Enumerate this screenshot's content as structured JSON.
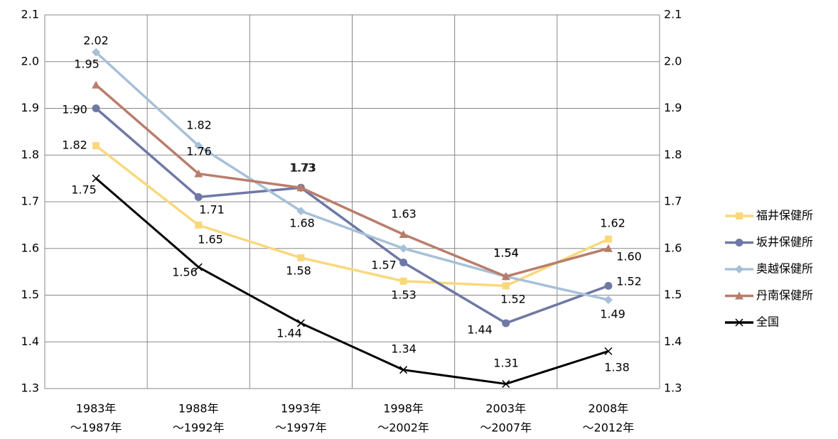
{
  "chart_data": {
    "type": "line",
    "categories": [
      [
        "1983年",
        "～1987年"
      ],
      [
        "1988年",
        "～1992年"
      ],
      [
        "1993年",
        "～1997年"
      ],
      [
        "1998年",
        "～2002年"
      ],
      [
        "2003年",
        "～2007年"
      ],
      [
        "2008年",
        "～2012年"
      ]
    ],
    "ylim": [
      1.3,
      2.1
    ],
    "yticks": [
      1.3,
      1.4,
      1.5,
      1.6,
      1.7,
      1.8,
      1.9,
      {
        "value": 2,
        "label": "2.0"
      },
      2.1
    ],
    "grid": true,
    "legend": "right",
    "series": [
      {
        "name": "福井保健所",
        "color": "#f9d87c",
        "marker": "square",
        "values": [
          1.82,
          1.65,
          1.58,
          1.53,
          1.52,
          1.62
        ],
        "value_labels": [
          "1.82",
          "1.65",
          "1.58",
          "1.53",
          "1.52",
          "1.62"
        ]
      },
      {
        "name": "坂井保健所",
        "color": "#6f78a5",
        "marker": "circle",
        "values": [
          1.9,
          1.71,
          1.73,
          1.57,
          1.44,
          1.52
        ],
        "value_labels": [
          "1.90",
          "1.71",
          "1.73",
          "1.57",
          "1.44",
          "1.52"
        ]
      },
      {
        "name": "奥越保健所",
        "color": "#a7c0d8",
        "marker": "diamond",
        "values": [
          2.02,
          1.82,
          1.68,
          1.6,
          1.54,
          1.49
        ],
        "value_labels": [
          "2.02",
          "1.82",
          "1.68",
          null,
          "1.54",
          "1.49"
        ]
      },
      {
        "name": "丹南保健所",
        "color": "#b97d6c",
        "marker": "triangle",
        "values": [
          1.95,
          1.76,
          1.73,
          1.63,
          1.54,
          1.6
        ],
        "value_labels": [
          "1.95",
          "1.76",
          "1.73",
          "1.63",
          "1.54",
          "1.60"
        ]
      },
      {
        "name": "全国",
        "color": "#000000",
        "marker": "x",
        "values": [
          1.75,
          1.56,
          1.44,
          1.34,
          1.31,
          1.38
        ],
        "value_labels": [
          "1.75",
          "1.56",
          "1.44",
          "1.34",
          "1.31",
          "1.38"
        ]
      }
    ]
  }
}
